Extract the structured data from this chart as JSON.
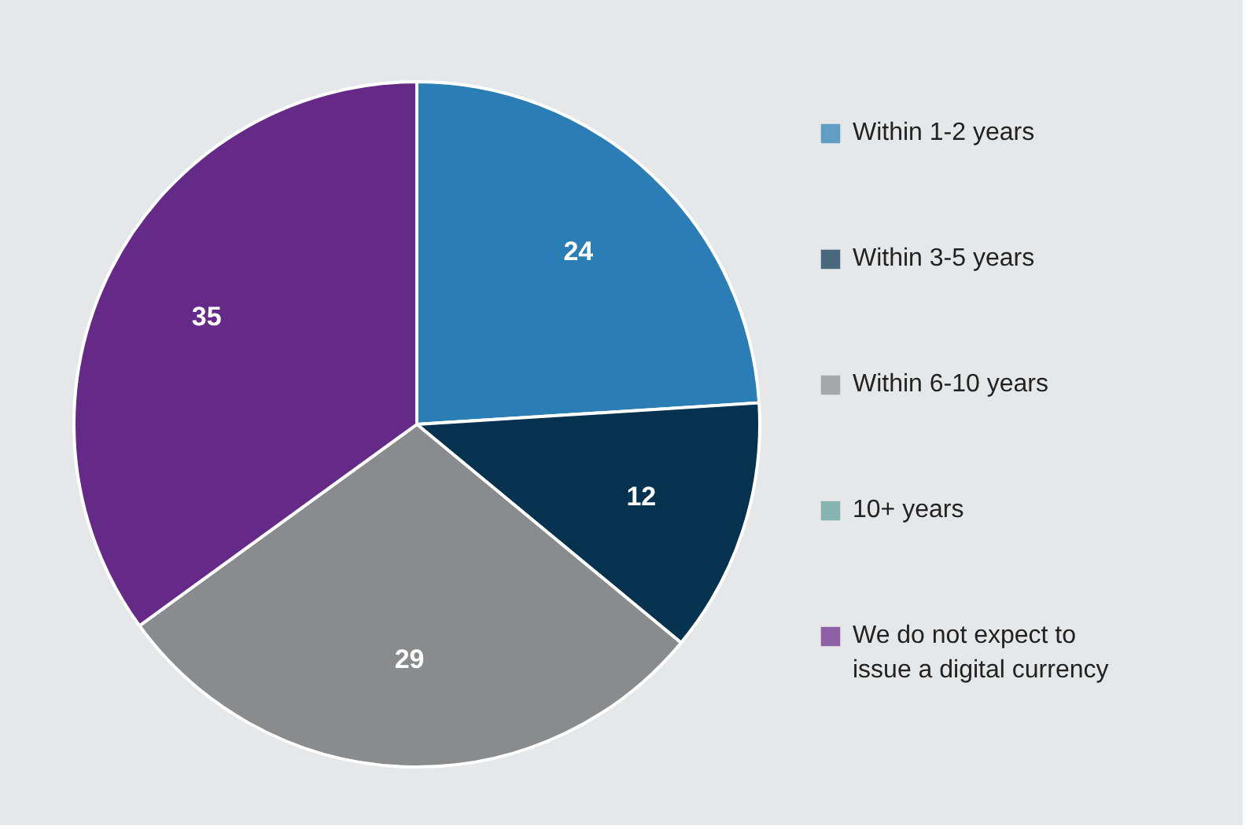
{
  "chart_data": {
    "type": "pie",
    "categories": [
      "Within 1-2 years",
      "Within 3-5 years",
      "Within 6-10 years",
      "10+ years",
      "We do not expect to issue a digital currency"
    ],
    "values": [
      24,
      12,
      29,
      0,
      35
    ],
    "colors": [
      "#2a7db5",
      "#05324f",
      "#898b8d",
      "#5f9e99",
      "#652a87"
    ],
    "value_labels": [
      "24",
      "12",
      "29",
      null,
      "35"
    ],
    "legend": "right"
  }
}
